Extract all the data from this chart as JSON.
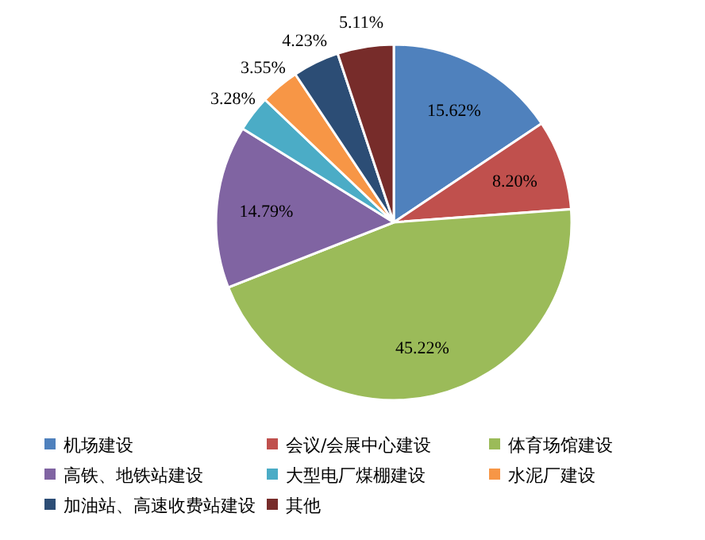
{
  "chart_data": {
    "type": "pie",
    "categories": [
      "机场建设",
      "会议/会展中心建设",
      "体育场馆建设",
      "高铁、地铁站建设",
      "大型电厂煤棚建设",
      "水泥厂建设",
      "加油站、高速收费站建设",
      "其他"
    ],
    "values": [
      15.62,
      8.2,
      45.22,
      14.79,
      3.28,
      3.55,
      4.23,
      5.11
    ],
    "colors": [
      "#4f81bd",
      "#c0504d",
      "#9bbb59",
      "#8064a2",
      "#4bacc6",
      "#f79646",
      "#2c4d75",
      "#772c2a"
    ],
    "value_labels": [
      "15.62%",
      "8.20%",
      "45.22%",
      "14.79%",
      "3.28%",
      "3.55%",
      "4.23%",
      "5.11%"
    ],
    "legend": "bottom"
  }
}
